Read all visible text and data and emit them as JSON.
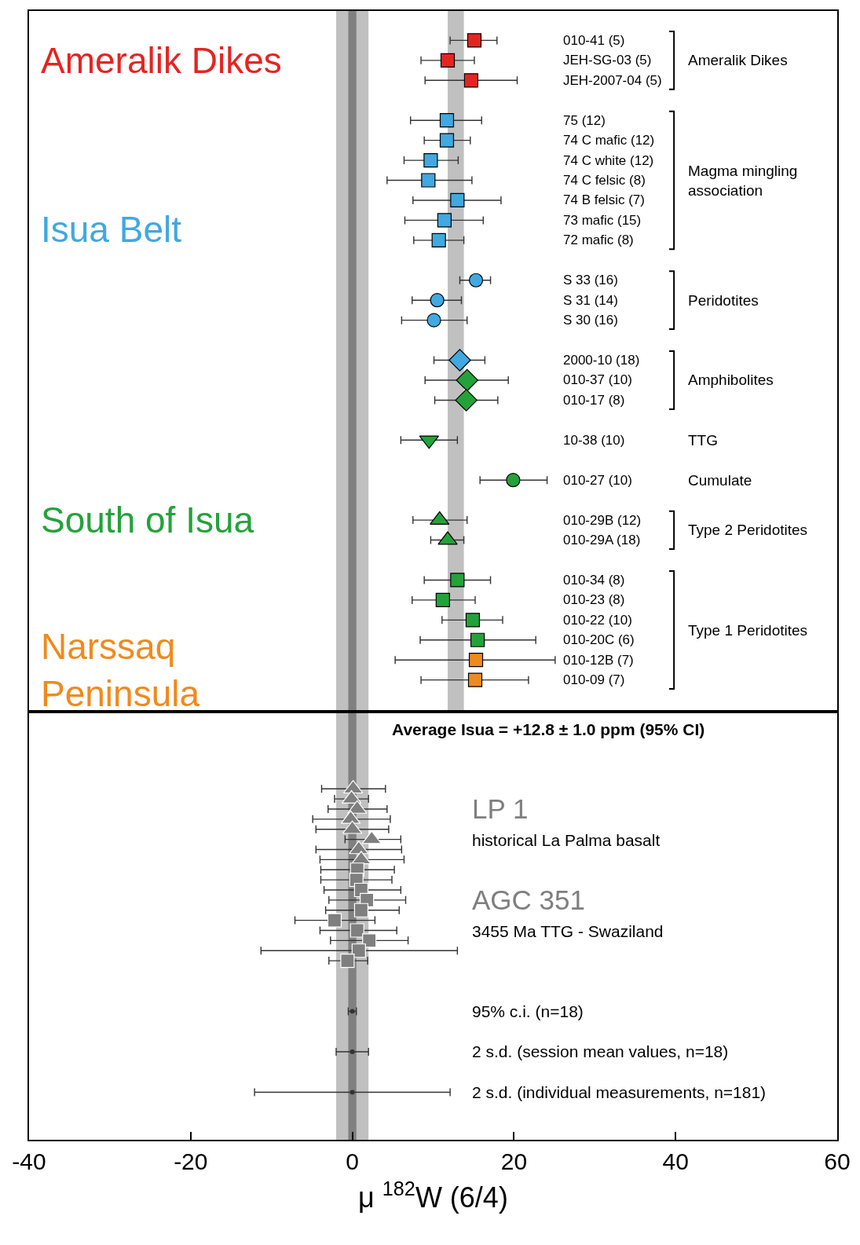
{
  "chart_data": [
    {
      "type": "scatter",
      "orientation": "horizontal",
      "xlim": [
        -40,
        60
      ],
      "tick_labels": false,
      "categories": [
        "010-41 (5)",
        "JEH-SG-03 (5)",
        "JEH-2007-04 (5)",
        null,
        "75 (12)",
        "74 C mafic (12)",
        "74 C white (12)",
        "74 C felsic (8)",
        "74 B felsic (7)",
        "73 mafic (15)",
        "72 mafic (8)",
        null,
        "S 33 (16)",
        "S 31 (14)",
        "S 30 (16)",
        null,
        "2000-10 (18)",
        "010-37 (10)",
        "010-17 (8)",
        null,
        "10-38 (10)",
        null,
        "010-27 (10)",
        null,
        "010-29B (12)",
        "010-29A (18)",
        null,
        "010-34 (8)",
        "010-23 (8)",
        "010-22 (10)",
        "010-20C (6)",
        "010-12B (7)",
        "010-09 (7)"
      ],
      "series": [
        {
          "name": "Ameralik Dikes",
          "color": "#e52421",
          "marker": "square",
          "values": [
            15.1,
            11.8,
            14.7,
            null,
            null,
            null,
            null,
            null,
            null,
            null,
            null,
            null,
            null,
            null,
            null,
            null,
            null,
            null,
            null,
            null,
            null,
            null,
            null,
            null,
            null,
            null,
            null,
            null,
            null,
            null,
            null,
            null,
            null
          ],
          "errors": [
            [
              12.1,
              17.9
            ],
            [
              8.5,
              15.1
            ],
            [
              9.0,
              20.4
            ],
            null,
            null,
            null,
            null,
            null,
            null,
            null,
            null,
            null,
            null,
            null,
            null,
            null,
            null,
            null,
            null,
            null,
            null,
            null,
            null,
            null,
            null,
            null,
            null,
            null,
            null,
            null,
            null,
            null,
            null
          ]
        },
        {
          "name": "Isua Belt",
          "color": "#41a8e0",
          "marker": "square",
          "values": [
            null,
            null,
            null,
            null,
            11.7,
            11.7,
            9.7,
            9.4,
            13.0,
            11.4,
            10.7,
            null,
            null,
            null,
            null,
            null,
            null,
            null,
            null,
            null,
            null,
            null,
            null,
            null,
            null,
            null,
            null,
            null,
            null,
            null,
            null,
            null,
            null
          ],
          "errors": [
            null,
            null,
            null,
            null,
            [
              7.2,
              16.0
            ],
            [
              8.9,
              14.6
            ],
            [
              6.4,
              13.1
            ],
            [
              4.3,
              14.8
            ],
            [
              7.5,
              18.4
            ],
            [
              6.5,
              16.2
            ],
            [
              7.6,
              13.8
            ],
            null,
            null,
            null,
            null,
            null,
            null,
            null,
            null,
            null,
            null,
            null,
            null,
            null,
            null,
            null,
            null,
            null,
            null,
            null,
            null,
            null,
            null
          ]
        },
        {
          "color": "#41a8e0",
          "marker": "circle",
          "values": [
            null,
            null,
            null,
            null,
            null,
            null,
            null,
            null,
            null,
            null,
            null,
            null,
            15.3,
            10.5,
            10.1,
            null,
            null,
            null,
            null,
            null,
            null,
            null,
            null,
            null,
            null,
            null,
            null,
            null,
            null,
            null,
            null,
            null,
            null
          ],
          "errors": [
            null,
            null,
            null,
            null,
            null,
            null,
            null,
            null,
            null,
            null,
            null,
            null,
            [
              13.3,
              17.1
            ],
            [
              7.4,
              13.5
            ],
            [
              6.1,
              14.2
            ],
            null,
            null,
            null,
            null,
            null,
            null,
            null,
            null,
            null,
            null,
            null,
            null,
            null,
            null,
            null,
            null,
            null,
            null
          ]
        },
        {
          "color": "#41a8e0",
          "marker": "diamond",
          "values": [
            null,
            null,
            null,
            null,
            null,
            null,
            null,
            null,
            null,
            null,
            null,
            null,
            null,
            null,
            null,
            null,
            13.3,
            null,
            null,
            null,
            null,
            null,
            null,
            null,
            null,
            null,
            null,
            null,
            null,
            null,
            null,
            null,
            null
          ],
          "errors": [
            null,
            null,
            null,
            null,
            null,
            null,
            null,
            null,
            null,
            null,
            null,
            null,
            null,
            null,
            null,
            null,
            [
              10.1,
              16.4
            ],
            null,
            null,
            null,
            null,
            null,
            null,
            null,
            null,
            null,
            null,
            null,
            null,
            null,
            null,
            null,
            null
          ]
        },
        {
          "name": "South of Isua",
          "color": "#23a23a",
          "marker": "diamond",
          "values": [
            null,
            null,
            null,
            null,
            null,
            null,
            null,
            null,
            null,
            null,
            null,
            null,
            null,
            null,
            null,
            null,
            null,
            14.2,
            14.1,
            null,
            null,
            null,
            null,
            null,
            null,
            null,
            null,
            null,
            null,
            null,
            null,
            null,
            null
          ],
          "errors": [
            null,
            null,
            null,
            null,
            null,
            null,
            null,
            null,
            null,
            null,
            null,
            null,
            null,
            null,
            null,
            null,
            null,
            [
              9.0,
              19.3
            ],
            [
              10.2,
              18.0
            ],
            null,
            null,
            null,
            null,
            null,
            null,
            null,
            null,
            null,
            null,
            null,
            null,
            null,
            null
          ]
        },
        {
          "color": "#23a23a",
          "marker": "triangle-down",
          "values": [
            null,
            null,
            null,
            null,
            null,
            null,
            null,
            null,
            null,
            null,
            null,
            null,
            null,
            null,
            null,
            null,
            null,
            null,
            null,
            null,
            9.5,
            null,
            null,
            null,
            null,
            null,
            null,
            null,
            null,
            null,
            null,
            null,
            null
          ],
          "errors": [
            null,
            null,
            null,
            null,
            null,
            null,
            null,
            null,
            null,
            null,
            null,
            null,
            null,
            null,
            null,
            null,
            null,
            null,
            null,
            null,
            [
              6.0,
              13.0
            ],
            null,
            null,
            null,
            null,
            null,
            null,
            null,
            null,
            null,
            null,
            null,
            null
          ]
        },
        {
          "color": "#23a23a",
          "marker": "circle",
          "values": [
            null,
            null,
            null,
            null,
            null,
            null,
            null,
            null,
            null,
            null,
            null,
            null,
            null,
            null,
            null,
            null,
            null,
            null,
            null,
            null,
            null,
            null,
            19.9,
            null,
            null,
            null,
            null,
            null,
            null,
            null,
            null,
            null,
            null
          ],
          "errors": [
            null,
            null,
            null,
            null,
            null,
            null,
            null,
            null,
            null,
            null,
            null,
            null,
            null,
            null,
            null,
            null,
            null,
            null,
            null,
            null,
            null,
            null,
            [
              15.8,
              24.1
            ],
            null,
            null,
            null,
            null,
            null,
            null,
            null,
            null,
            null,
            null
          ]
        },
        {
          "color": "#23a23a",
          "marker": "triangle",
          "values": [
            null,
            null,
            null,
            null,
            null,
            null,
            null,
            null,
            null,
            null,
            null,
            null,
            null,
            null,
            null,
            null,
            null,
            null,
            null,
            null,
            null,
            null,
            null,
            null,
            10.8,
            11.8,
            null,
            null,
            null,
            null,
            null,
            null,
            null
          ],
          "errors": [
            null,
            null,
            null,
            null,
            null,
            null,
            null,
            null,
            null,
            null,
            null,
            null,
            null,
            null,
            null,
            null,
            null,
            null,
            null,
            null,
            null,
            null,
            null,
            null,
            [
              7.5,
              14.2
            ],
            [
              9.7,
              13.8
            ],
            null,
            null,
            null,
            null,
            null,
            null,
            null
          ]
        },
        {
          "color": "#23a23a",
          "marker": "square",
          "values": [
            null,
            null,
            null,
            null,
            null,
            null,
            null,
            null,
            null,
            null,
            null,
            null,
            null,
            null,
            null,
            null,
            null,
            null,
            null,
            null,
            null,
            null,
            null,
            null,
            null,
            null,
            null,
            13.0,
            11.2,
            14.9,
            15.5,
            null,
            null
          ],
          "errors": [
            null,
            null,
            null,
            null,
            null,
            null,
            null,
            null,
            null,
            null,
            null,
            null,
            null,
            null,
            null,
            null,
            null,
            null,
            null,
            null,
            null,
            null,
            null,
            null,
            null,
            null,
            null,
            [
              8.9,
              17.1
            ],
            [
              7.4,
              15.2
            ],
            [
              11.1,
              18.6
            ],
            [
              8.4,
              22.7
            ],
            null,
            null
          ]
        },
        {
          "name": "Narssaq\nPeninsula",
          "color": "#f08a1c",
          "marker": "square",
          "values": [
            null,
            null,
            null,
            null,
            null,
            null,
            null,
            null,
            null,
            null,
            null,
            null,
            null,
            null,
            null,
            null,
            null,
            null,
            null,
            null,
            null,
            null,
            null,
            null,
            null,
            null,
            null,
            null,
            null,
            null,
            null,
            15.3,
            15.2
          ],
          "errors": [
            null,
            null,
            null,
            null,
            null,
            null,
            null,
            null,
            null,
            null,
            null,
            null,
            null,
            null,
            null,
            null,
            null,
            null,
            null,
            null,
            null,
            null,
            null,
            null,
            null,
            null,
            null,
            null,
            null,
            null,
            null,
            [
              5.3,
              25.1
            ],
            [
              8.5,
              21.8
            ]
          ]
        }
      ],
      "bands": [
        {
          "axis": "x",
          "from": -2.0,
          "to": 2.0,
          "color": "#c0c0c0"
        },
        {
          "axis": "x",
          "from": -0.5,
          "to": 0.5,
          "color": "#808080"
        },
        {
          "axis": "x",
          "from": 11.8,
          "to": 13.8,
          "color": "#c0c0c0"
        }
      ],
      "annotations": [
        "Ameralik Dikes",
        "Magma mingling\nassociation",
        "Peridotites",
        "Amphibolites",
        "TTG",
        "Cumulate",
        "Type 2 Peridotites",
        "Type 1 Peridotites"
      ]
    },
    {
      "type": "scatter",
      "orientation": "horizontal",
      "xlim": [
        -40,
        60
      ],
      "tick_labels": "x",
      "xlabel": "μ $^{182}$W (6/4)",
      "xticks": [
        -40,
        -20,
        0,
        20,
        40,
        60
      ],
      "categories": [
        null,
        null,
        null,
        null,
        null,
        null,
        null,
        null,
        null,
        null,
        null,
        null,
        null,
        null,
        null,
        null,
        null,
        null,
        null,
        null,
        null,
        null,
        "95% c.i. (n=18)",
        null,
        null,
        null,
        "2 s.d. (session mean values, n=18)",
        null,
        null,
        null,
        "2 s.d. (individual measurements, n=181)"
      ],
      "series": [
        {
          "name": "LP 1",
          "color": "#7f7f7f",
          "marker": "triangle",
          "values": [
            0.1,
            -0.1,
            0.6,
            -0.2,
            0.0,
            2.4,
            0.8,
            1.1,
            null,
            null,
            null,
            null,
            null,
            null,
            null,
            null,
            null,
            null,
            null,
            null,
            null,
            null,
            null,
            null,
            null,
            null,
            null,
            null,
            null,
            null,
            null
          ],
          "errors": [
            [
              -3.8,
              4.1
            ],
            [
              -2.2,
              2.0
            ],
            [
              -3.0,
              4.3
            ],
            [
              -4.9,
              4.7
            ],
            [
              -4.5,
              4.5
            ],
            [
              -0.9,
              6.0
            ],
            [
              -4.5,
              6.1
            ],
            [
              -4.0,
              6.4
            ],
            null,
            null,
            null,
            null,
            null,
            null,
            null,
            null,
            null,
            null,
            null,
            null,
            null,
            null,
            null,
            null,
            null,
            null,
            null,
            null,
            null,
            null,
            null
          ]
        },
        {
          "name": "AGC 351",
          "color": "#7f7f7f",
          "marker": "square",
          "values": [
            null,
            null,
            null,
            null,
            null,
            null,
            null,
            null,
            0.6,
            0.5,
            1.1,
            1.8,
            1.1,
            -2.2,
            0.6,
            2.1,
            0.8,
            -0.6,
            null,
            null,
            null,
            null,
            null,
            null,
            null,
            null,
            null,
            null,
            null,
            null,
            null
          ],
          "errors": [
            null,
            null,
            null,
            null,
            null,
            null,
            null,
            null,
            [
              -3.9,
              5.2
            ],
            [
              -3.9,
              4.9
            ],
            [
              -3.5,
              6.0
            ],
            [
              -2.9,
              6.6
            ],
            [
              -3.3,
              5.8
            ],
            [
              -7.1,
              2.8
            ],
            [
              -4.0,
              5.5
            ],
            [
              -2.7,
              6.9
            ],
            [
              -11.3,
              13.0
            ],
            [
              -2.9,
              1.9
            ],
            null,
            null,
            null,
            null,
            null,
            null,
            null,
            null,
            null,
            null,
            null,
            null,
            null
          ]
        },
        {
          "color": "#333333",
          "marker": "none",
          "values": [
            null,
            null,
            null,
            null,
            null,
            null,
            null,
            null,
            null,
            null,
            null,
            null,
            null,
            null,
            null,
            null,
            null,
            null,
            null,
            null,
            null,
            null,
            0,
            null,
            null,
            null,
            0,
            null,
            null,
            null,
            0
          ],
          "errors": [
            null,
            null,
            null,
            null,
            null,
            null,
            null,
            null,
            null,
            null,
            null,
            null,
            null,
            null,
            null,
            null,
            null,
            null,
            null,
            null,
            null,
            null,
            0.5,
            null,
            null,
            null,
            2.0,
            null,
            null,
            null,
            12.1
          ]
        }
      ],
      "bands": [
        {
          "axis": "x",
          "from": -2.0,
          "to": 2.0,
          "color": "#c0c0c0"
        },
        {
          "axis": "x",
          "from": -0.5,
          "to": 0.5,
          "color": "#808080"
        }
      ],
      "annotations": [
        "Average Isua = +12.8 ± 1.0 ppm (95% CI)",
        "historical La Palma basalt",
        "3455 Ma TTG - Swaziland"
      ]
    }
  ]
}
